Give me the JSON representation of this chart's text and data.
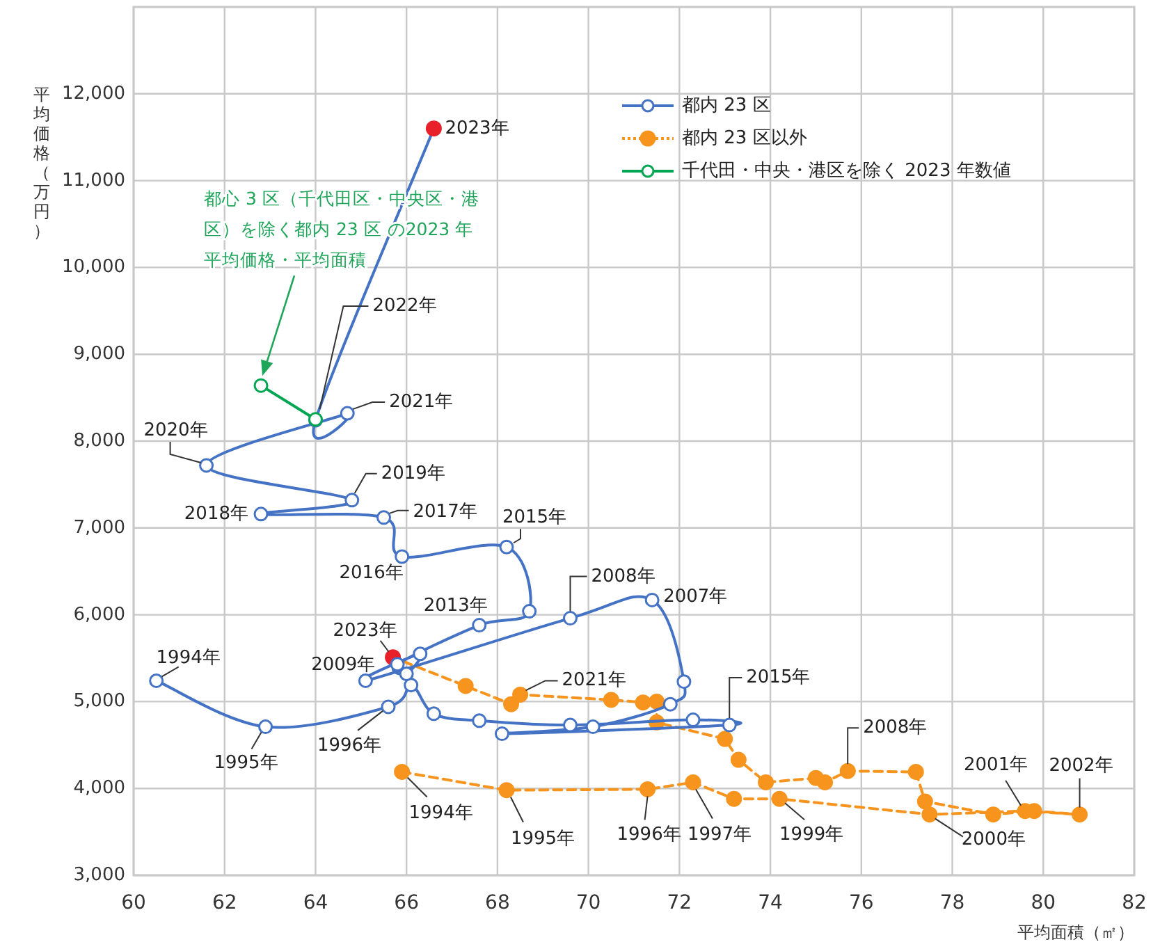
{
  "chart_data": {
    "type": "line",
    "xlabel": "平均面積（㎡）",
    "ylabel": "平均価格（万円）",
    "xlim": [
      60,
      82
    ],
    "ylim": [
      3000,
      13000
    ],
    "xticks": [
      60,
      62,
      64,
      66,
      68,
      70,
      72,
      74,
      76,
      78,
      80,
      82
    ],
    "yticks": [
      {
        "value": 3000,
        "label": "3,000"
      },
      {
        "value": 4000,
        "label": "4,000"
      },
      {
        "value": 5000,
        "label": "5,000"
      },
      {
        "value": 6000,
        "label": "6,000"
      },
      {
        "value": 7000,
        "label": "7,000"
      },
      {
        "value": 8000,
        "label": "8,000"
      },
      {
        "value": 9000,
        "label": "9,000"
      },
      {
        "value": 10000,
        "label": "10,000"
      },
      {
        "value": 11000,
        "label": "11,000"
      },
      {
        "value": 12000,
        "label": "12,000"
      }
    ],
    "grid": true,
    "legend": "top right",
    "marker": "circle",
    "series": [
      {
        "name": "都内 23 区",
        "color": "#4472c4",
        "line_style": "solid",
        "x": [
          60.5,
          62.9,
          65.6,
          66.1,
          66.6,
          67.6,
          69.6,
          72.3,
          73.1,
          68.1,
          70.1,
          71.8,
          72.1,
          71.4,
          69.6,
          65.1,
          66.3,
          66.0,
          65.8,
          67.6,
          68.7,
          68.2,
          65.9,
          65.5,
          62.8,
          64.8,
          61.6,
          64.7,
          64.0,
          66.6
        ],
        "values": [
          5240,
          4710,
          4940,
          5190,
          4860,
          4780,
          4730,
          4790,
          4730,
          4630,
          4710,
          4970,
          5230,
          6170,
          5960,
          5240,
          5550,
          5320,
          5430,
          5880,
          6040,
          6780,
          6670,
          7120,
          7160,
          7320,
          7720,
          8320,
          8240,
          11600
        ],
        "colors": [
          "#4472c4",
          "#4472c4",
          "#4472c4",
          "#4472c4",
          "#4472c4",
          "#4472c4",
          "#4472c4",
          "#4472c4",
          "#4472c4",
          "#4472c4",
          "#4472c4",
          "#4472c4",
          "#4472c4",
          "#4472c4",
          "#4472c4",
          "#4472c4",
          "#4472c4",
          "#4472c4",
          "#4472c4",
          "#4472c4",
          "#4472c4",
          "#4472c4",
          "#4472c4",
          "#4472c4",
          "#4472c4",
          "#4472c4",
          "#4472c4",
          "#4472c4",
          "#4472c4",
          "#e8202a"
        ]
      },
      {
        "name": "都内 23 区以外",
        "color": "#f7941d",
        "line_style": "dashed",
        "x": [
          65.9,
          68.2,
          71.3,
          72.3,
          73.2,
          74.2,
          77.5,
          79.6,
          80.8,
          79.8,
          78.9,
          77.4,
          77.2,
          75.7,
          75.2,
          75.0,
          73.9,
          73.3,
          73.0,
          71.5,
          71.5,
          71.2,
          70.5,
          68.5,
          68.3,
          67.3,
          65.7
        ],
        "values": [
          4190,
          3980,
          3990,
          4070,
          3880,
          3880,
          3700,
          3740,
          3700,
          3740,
          3700,
          3850,
          4190,
          4200,
          4070,
          4120,
          4070,
          4330,
          4570,
          4760,
          5000,
          4990,
          5020,
          5080,
          4970,
          5180,
          5510
        ],
        "colors": [
          "#f7941d",
          "#f7941d",
          "#f7941d",
          "#f7941d",
          "#f7941d",
          "#f7941d",
          "#f7941d",
          "#f7941d",
          "#f7941d",
          "#f7941d",
          "#f7941d",
          "#f7941d",
          "#f7941d",
          "#f7941d",
          "#f7941d",
          "#f7941d",
          "#f7941d",
          "#f7941d",
          "#f7941d",
          "#f7941d",
          "#f7941d",
          "#f7941d",
          "#f7941d",
          "#f7941d",
          "#f7941d",
          "#f7941d",
          "#e8202a"
        ]
      },
      {
        "name": "千代田・中央・港区を除く 2023 年数値",
        "color": "#00a651",
        "line_style": "solid",
        "x": [
          64.0,
          62.8
        ],
        "values": [
          8250,
          8640
        ]
      }
    ],
    "annotations": [
      {
        "text": "2023年",
        "x": 66.6,
        "y": 11600
      },
      {
        "text": "2022年",
        "x": 64.0,
        "y": 8240
      },
      {
        "text": "2021年",
        "x": 64.7,
        "y": 8320
      },
      {
        "text": "2020年",
        "x": 61.6,
        "y": 7720
      },
      {
        "text": "2019年",
        "x": 64.8,
        "y": 7320
      },
      {
        "text": "2018年",
        "x": 62.8,
        "y": 7160
      },
      {
        "text": "2017年",
        "x": 65.5,
        "y": 7120
      },
      {
        "text": "2016年",
        "x": 65.9,
        "y": 6670
      },
      {
        "text": "2015年",
        "x": 68.2,
        "y": 6780
      },
      {
        "text": "2013年",
        "x": 67.6,
        "y": 5880
      },
      {
        "text": "2008年",
        "x": 69.6,
        "y": 5960
      },
      {
        "text": "2007年",
        "x": 71.4,
        "y": 6170
      },
      {
        "text": "2009年",
        "x": 65.1,
        "y": 5240
      },
      {
        "text": "1994年",
        "x": 60.5,
        "y": 5240
      },
      {
        "text": "1995年",
        "x": 62.9,
        "y": 4710
      },
      {
        "text": "1996年",
        "x": 65.6,
        "y": 4940
      },
      {
        "text": "2015年",
        "x": 73.1,
        "y": 4730
      },
      {
        "text": "2023年",
        "x": 65.7,
        "y": 5510
      },
      {
        "text": "1994年",
        "x": 65.9,
        "y": 4190
      },
      {
        "text": "1995年",
        "x": 68.2,
        "y": 3980
      },
      {
        "text": "1996年",
        "x": 71.3,
        "y": 3990
      },
      {
        "text": "1997年",
        "x": 72.3,
        "y": 4070
      },
      {
        "text": "1999年",
        "x": 74.2,
        "y": 3880
      },
      {
        "text": "2000年",
        "x": 77.5,
        "y": 3700
      },
      {
        "text": "2001年",
        "x": 79.6,
        "y": 3740
      },
      {
        "text": "2002年",
        "x": 80.8,
        "y": 3700
      },
      {
        "text": "2008年",
        "x": 75.7,
        "y": 4200
      },
      {
        "text": "2021年",
        "x": 68.5,
        "y": 5080
      },
      "都心 3 区（千代田区・中央区・港区）を除く都内 23 区 の2023 年平均価格・平均面積"
    ]
  }
}
